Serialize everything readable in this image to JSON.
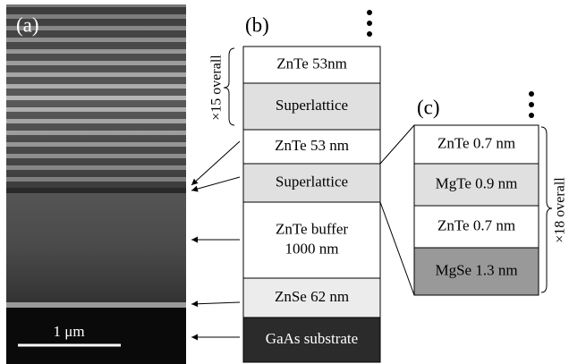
{
  "panel_a": {
    "label": "(a)",
    "scale_bar": "1 μm"
  },
  "panel_b": {
    "label": "(b)",
    "repeat_note": "×15 overall",
    "layers": [
      [
        "ZnTe 53nm"
      ],
      [
        "Superlattice"
      ],
      [
        "ZnTe 53 nm"
      ],
      [
        "Superlattice"
      ],
      [
        "ZnTe buffer",
        "1000 nm"
      ],
      [
        "ZnSe 62 nm"
      ],
      [
        "GaAs substrate"
      ]
    ]
  },
  "panel_c": {
    "label": "(c)",
    "repeat_note": "×18 overall",
    "layers": [
      [
        "ZnTe 0.7 nm"
      ],
      [
        "MgTe 0.9 nm"
      ],
      [
        "ZnTe 0.7 nm"
      ],
      [
        "MgSe 1.3 nm"
      ]
    ]
  }
}
